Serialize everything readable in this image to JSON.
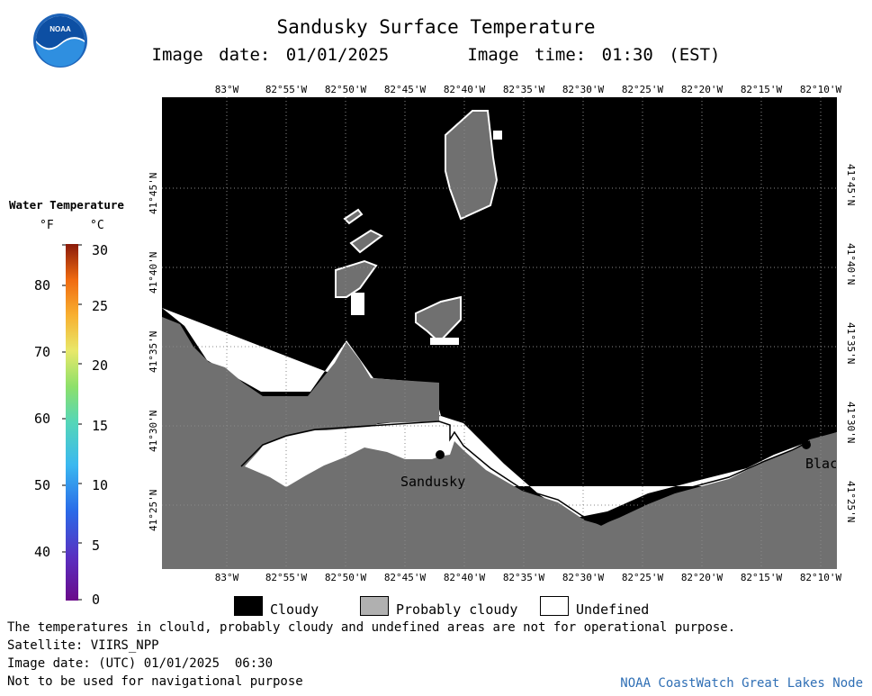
{
  "header": {
    "title": "Sandusky Surface Temperature",
    "subtitle_date": "Image date: 01/01/2025",
    "subtitle_time": "Image time: 01:30 (EST)"
  },
  "logo": {
    "text": "NOAA"
  },
  "legend": {
    "title": "Water Temperature",
    "unit_f": "°F",
    "unit_c": "°C",
    "f_ticks": [
      "80",
      "70",
      "60",
      "50",
      "40"
    ],
    "c_ticks": [
      "30",
      "25",
      "20",
      "15",
      "10",
      "5",
      "0"
    ]
  },
  "map": {
    "lon_labels": [
      "83°W",
      "82°55'W",
      "82°50'W",
      "82°45'W",
      "82°40'W",
      "82°35'W",
      "82°30'W",
      "82°25'W",
      "82°20'W",
      "82°15'W",
      "82°10'W"
    ],
    "lat_labels": [
      "41°45'N",
      "41°40'N",
      "41°35'N",
      "41°30'N",
      "41°25'N"
    ],
    "cities": {
      "sandusky": "Sandusky",
      "blac": "Blac"
    },
    "colors": {
      "cloudy": "#000000",
      "probably_cloudy": "#707070",
      "undefined": "#ffffff",
      "grid": "#8a8a8a"
    }
  },
  "key": {
    "cloudy": "Cloudy",
    "probably_cloudy": "Probably cloudy",
    "undefined": "Undefined"
  },
  "notes": {
    "disclaimer": "The temperatures in clould, probably cloudy and undefined areas are not for operational purpose.",
    "satellite": "Satellite: VIIRS_NPP",
    "utc": "Image date: (UTC) 01/01/2025  06:30",
    "nav": "Not to be used for navigational purpose",
    "node": "NOAA CoastWatch Great Lakes Node"
  }
}
